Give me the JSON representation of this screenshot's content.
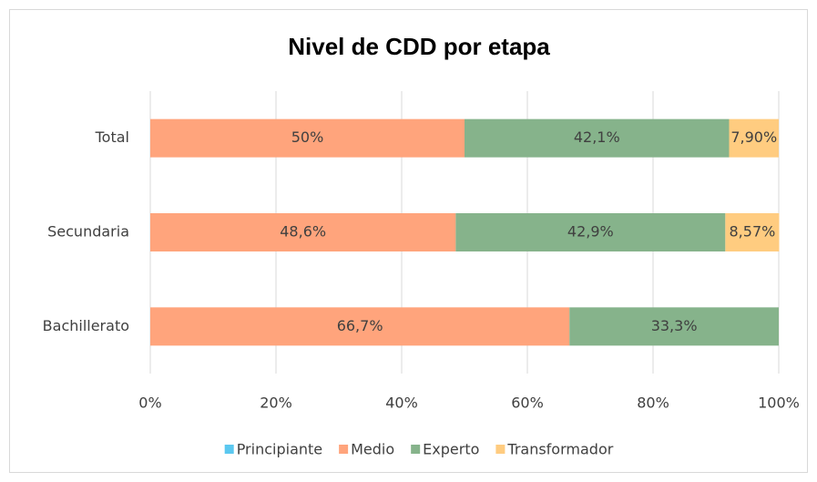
{
  "chart_data": {
    "type": "stacked_barh",
    "title": "Nivel de CDD por etapa",
    "categories": [
      "Total",
      "Secundaria",
      "Bachillerato"
    ],
    "series": [
      {
        "name": "Principiante",
        "color": "#5bc8f0",
        "values": [
          0,
          0,
          0
        ],
        "value_labels": [
          null,
          null,
          null
        ]
      },
      {
        "name": "Medio",
        "color": "#ffa47c",
        "values": [
          50,
          48.6,
          66.7
        ],
        "value_labels": [
          "50%",
          "48,6%",
          "66,7%"
        ]
      },
      {
        "name": "Experto",
        "color": "#86b38b",
        "values": [
          42.1,
          42.9,
          33.3
        ],
        "value_labels": [
          "42,1%",
          "42,9%",
          "33,3%"
        ]
      },
      {
        "name": "Transformador",
        "color": "#ffcc80",
        "values": [
          7.9,
          8.57,
          0
        ],
        "value_labels": [
          "7,90%",
          "8,57%",
          null
        ]
      }
    ],
    "xlim": [
      0,
      100
    ],
    "xticks": [
      {
        "value": 0,
        "label": "0%"
      },
      {
        "value": 20,
        "label": "20%"
      },
      {
        "value": 40,
        "label": "40%"
      },
      {
        "value": 60,
        "label": "60%"
      },
      {
        "value": 80,
        "label": "80%"
      },
      {
        "value": 100,
        "label": "100%"
      }
    ],
    "grid": true,
    "legend": "bottom"
  }
}
